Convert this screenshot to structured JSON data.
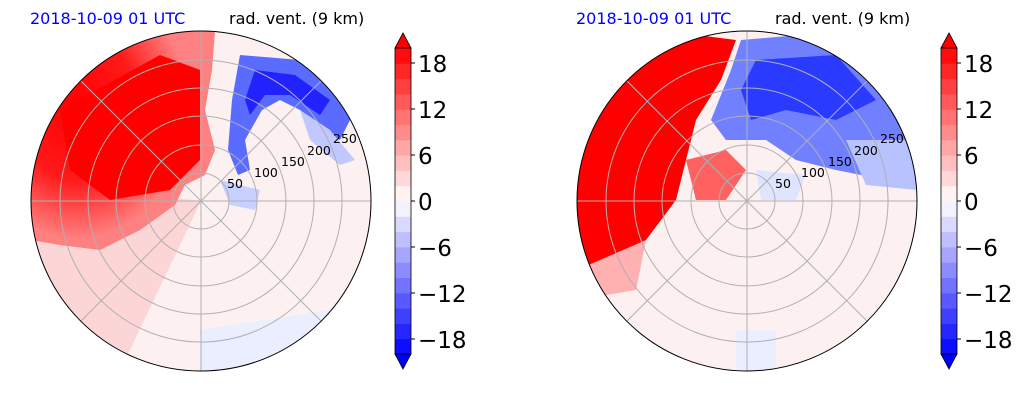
{
  "colors": {
    "positive": "#ff0000",
    "negative": "#0000ff",
    "neutral": "#fdf0f0",
    "grid": "#b0b0b0"
  },
  "chart_data": [
    {
      "type": "polar-contour",
      "title_left": "2018-10-09 01 UTC",
      "title_right": "rad. vent. (9 km)",
      "radial_ticks": [
        "50",
        "100",
        "150",
        "200",
        "250"
      ],
      "radial_range": [
        0,
        300
      ],
      "colorbar": {
        "ticks": [
          "18",
          "12",
          "6",
          "0",
          "−6",
          "−12",
          "−18"
        ],
        "range": [
          -20,
          20
        ],
        "extend": "both",
        "cmap": "bwr"
      },
      "grid": true
    },
    {
      "type": "polar-contour",
      "title_left": "2018-10-09 01 UTC",
      "title_right": "rad. vent. (9 km)",
      "radial_ticks": [
        "50",
        "100",
        "150",
        "200",
        "250"
      ],
      "radial_range": [
        0,
        300
      ],
      "colorbar": {
        "ticks": [
          "18",
          "12",
          "6",
          "0",
          "−6",
          "−12",
          "−18"
        ],
        "range": [
          -20,
          20
        ],
        "extend": "both",
        "cmap": "bwr"
      },
      "grid": true
    }
  ]
}
